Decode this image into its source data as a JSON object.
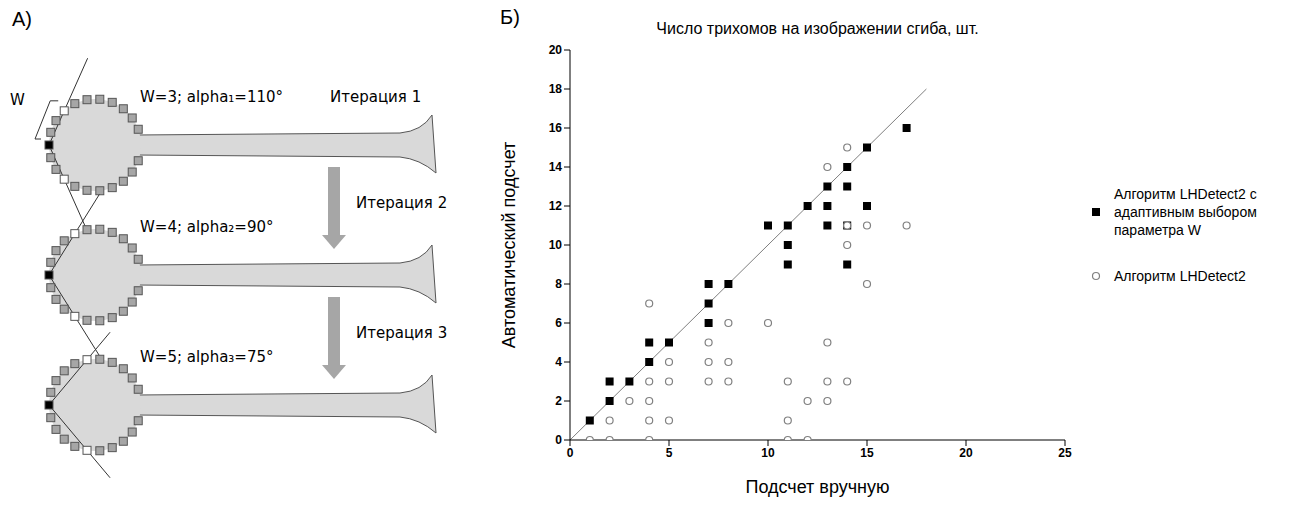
{
  "panel_a": {
    "letter": "А)",
    "width_label": "W",
    "steps": [
      {
        "text": "W=3; alpha₁=110°",
        "iteration": "Итерация 1"
      },
      {
        "text": "W=4; alpha₂=90°",
        "iteration": "Итерация 2"
      },
      {
        "text": "W=5; alpha₃=75°",
        "iteration": "Итерация 3"
      }
    ]
  },
  "chart_letter": "Б)",
  "chart_data": {
    "type": "scatter",
    "title": "Число трихомов на изображении сгиба, шт.",
    "x_label": "Подсчет вручную",
    "y_label": "Автоматический подсчет",
    "xlim": [
      0,
      25
    ],
    "xticks": [
      0,
      5,
      10,
      15,
      20,
      25
    ],
    "ylim": [
      0,
      20
    ],
    "yticks": [
      0,
      2,
      4,
      6,
      8,
      10,
      12,
      14,
      16,
      18,
      20
    ],
    "grid": false,
    "legend": "right",
    "reference_line": {
      "x": [
        0,
        18
      ],
      "y": [
        0,
        18
      ]
    },
    "series": [
      {
        "name": "Алгоритм LHDetect2 с адаптивным выбором параметра W",
        "color": "#000000",
        "marker": "square",
        "x": [
          1,
          2,
          2,
          3,
          4,
          4,
          5,
          7,
          7,
          7,
          8,
          10,
          11,
          11,
          11,
          12,
          13,
          13,
          13,
          14,
          14,
          14,
          14,
          15,
          15,
          17
        ],
        "values": [
          1,
          2,
          3,
          3,
          4,
          5,
          5,
          6,
          7,
          8,
          8,
          11,
          11,
          10,
          9,
          12,
          13,
          12,
          11,
          14,
          13,
          11,
          9,
          15,
          12,
          16
        ]
      },
      {
        "name": "Алгоритм LHDetect2",
        "color": "#808080",
        "marker": "open_circle",
        "x": [
          1,
          2,
          2,
          3,
          4,
          4,
          4,
          4,
          4,
          5,
          5,
          5,
          7,
          7,
          7,
          8,
          8,
          8,
          10,
          11,
          11,
          11,
          12,
          12,
          13,
          13,
          13,
          13,
          14,
          14,
          14,
          14,
          15,
          15,
          17
        ],
        "values": [
          0,
          0,
          1,
          2,
          7,
          3,
          2,
          1,
          0,
          4,
          3,
          1,
          5,
          4,
          3,
          6,
          4,
          3,
          6,
          3,
          1,
          0,
          2,
          0,
          14,
          5,
          3,
          2,
          15,
          10,
          11,
          3,
          11,
          8,
          11
        ]
      }
    ]
  }
}
